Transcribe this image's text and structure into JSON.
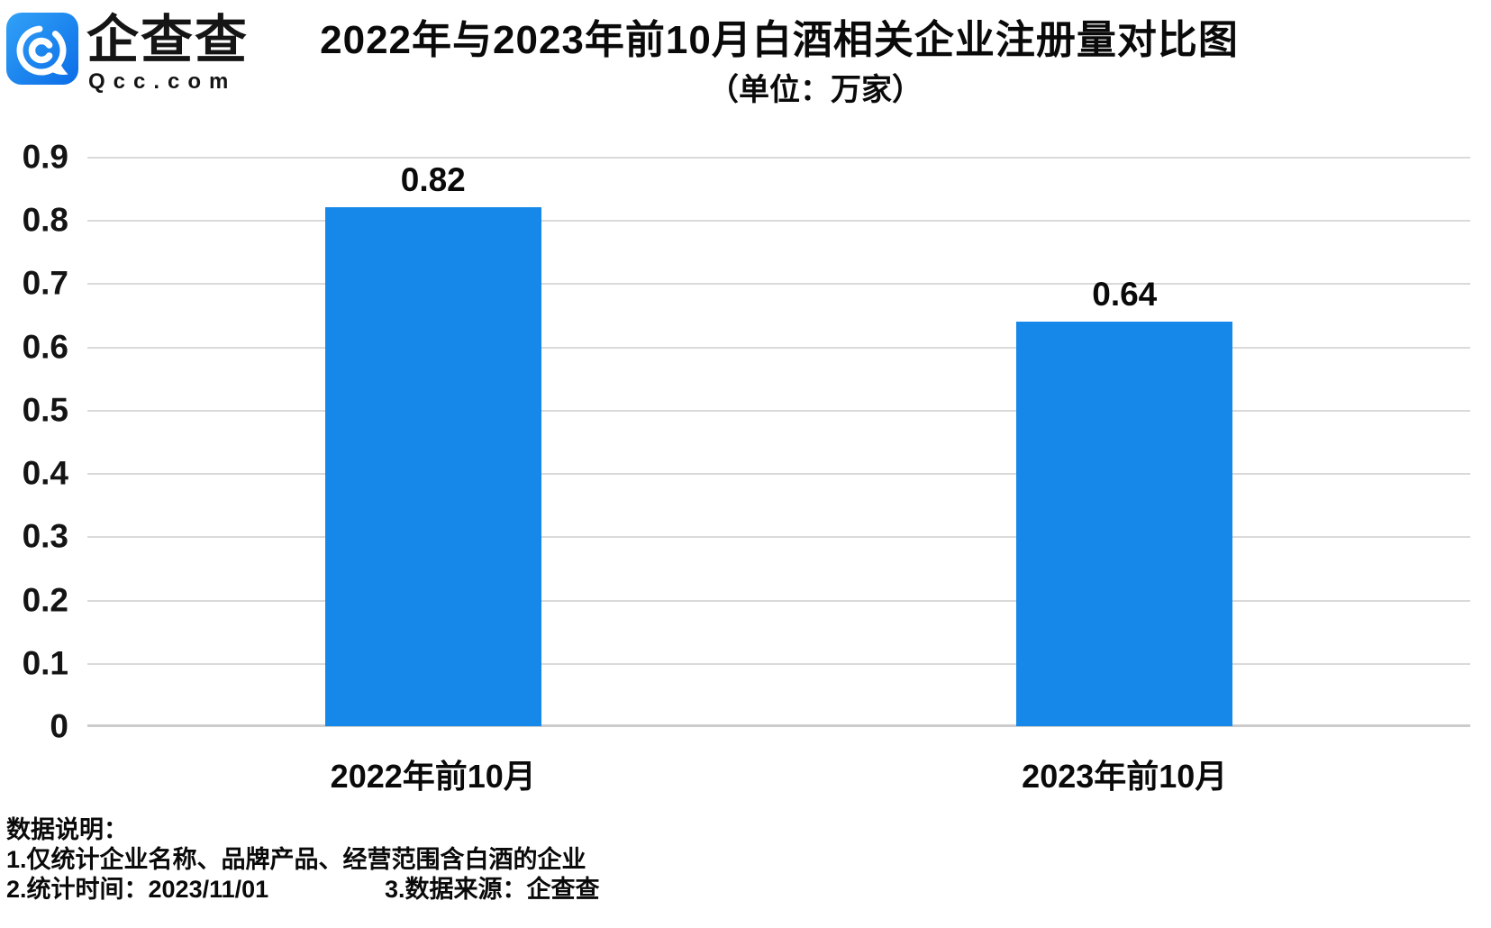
{
  "brand": {
    "name": "企查查",
    "domain": "Qcc.com"
  },
  "header": {
    "title": "2022年与2023年前10月白酒相关企业注册量对比图",
    "subtitle": "（单位：万家）"
  },
  "chart_data": {
    "type": "bar",
    "title": "2022年与2023年前10月白酒相关企业注册量对比图",
    "unit_label": "（单位：万家）",
    "categories": [
      "2022年前10月",
      "2023年前10月"
    ],
    "values": [
      0.82,
      0.64
    ],
    "value_labels": [
      "0.82",
      "0.64"
    ],
    "xlabel": "",
    "ylabel": "",
    "ylim": [
      0,
      0.9
    ],
    "ytick_labels": [
      "0.9",
      "0.8",
      "0.7",
      "0.6",
      "0.5",
      "0.4",
      "0.3",
      "0.2",
      "0.1",
      "0"
    ],
    "grid": "horizontal",
    "legend": "none",
    "bar_color": "#1588e9"
  },
  "footer": {
    "heading": "数据说明：",
    "note1": "1.仅统计企业名称、品牌产品、经营范围含白酒的企业",
    "note2": "2.统计时间：2023/11/01",
    "note3": "3.数据来源：企查查"
  },
  "colors": {
    "bar": "#1588e9",
    "gridline": "#dadada",
    "axis_line": "#cccccc",
    "text": "#111111",
    "logo_gradient_start": "#31a2f7",
    "logo_gradient_end": "#0c6ce7"
  }
}
